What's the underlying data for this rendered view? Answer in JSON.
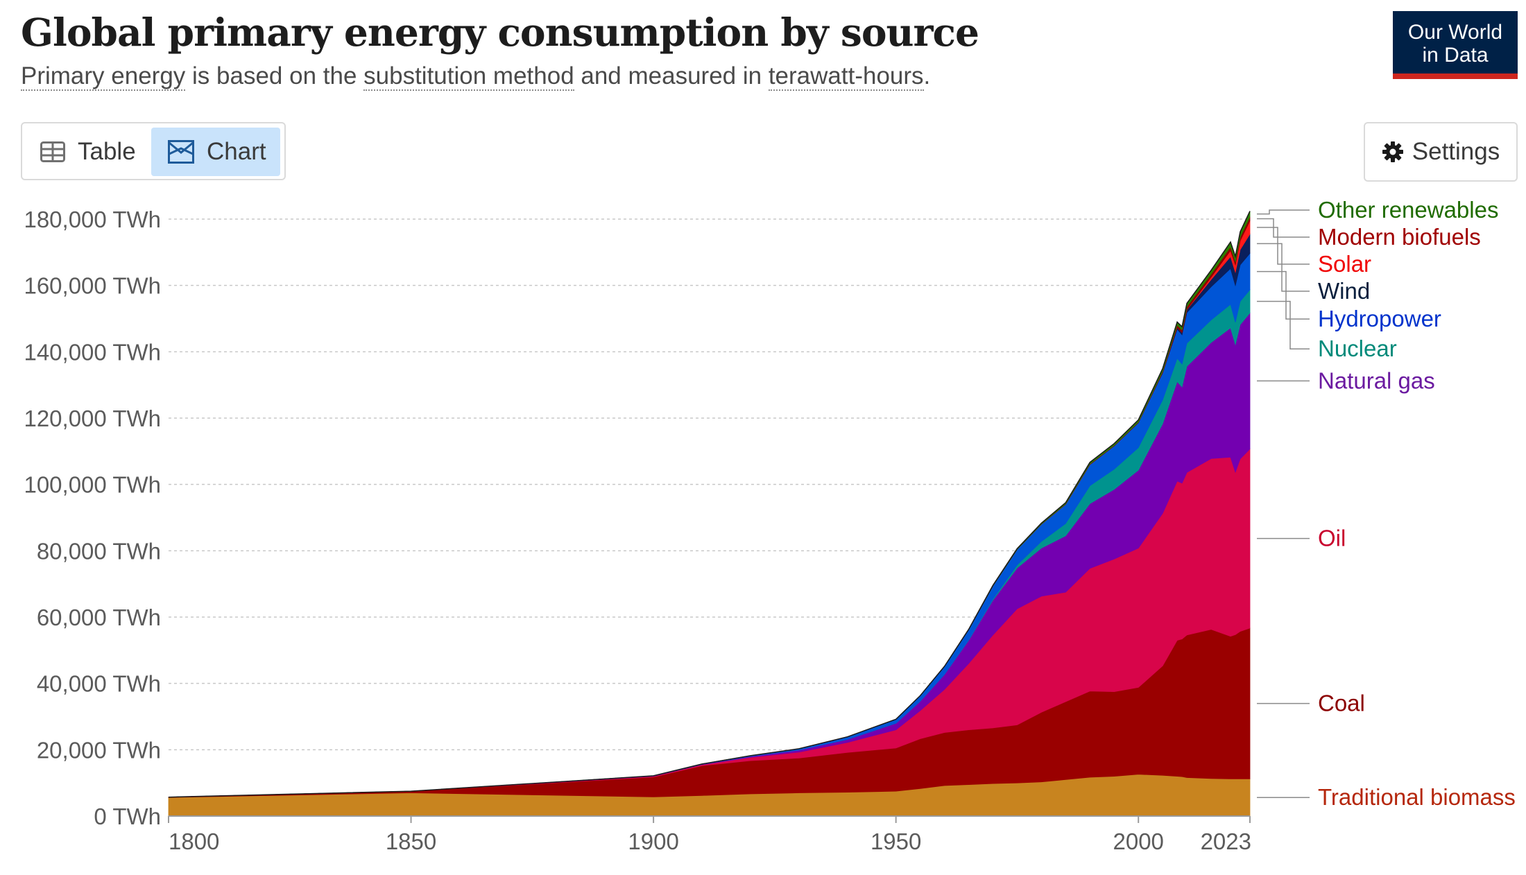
{
  "header": {
    "title": "Global primary energy consumption by source",
    "subtitle_parts": [
      {
        "text": "Primary energy",
        "term": true
      },
      {
        "text": " is based on the ",
        "term": false
      },
      {
        "text": "substitution method",
        "term": true
      },
      {
        "text": " and measured in ",
        "term": false
      },
      {
        "text": "terawatt-hours",
        "term": true
      },
      {
        "text": ".",
        "term": false
      }
    ]
  },
  "logo": {
    "line1": "Our World",
    "line2": "in Data"
  },
  "controls": {
    "table_label": "Table",
    "chart_label": "Chart",
    "settings_label": "Settings",
    "active_tab": "Chart"
  },
  "colors": {
    "accent_chart_tab": "#c9e3fb",
    "logo_bg": "#002147",
    "logo_bar": "#ce261e"
  },
  "chart_data": {
    "type": "area",
    "stacked": true,
    "title": "Global primary energy consumption by source",
    "ylabel_unit": "TWh",
    "ylim": [
      0,
      180000
    ],
    "yticks": [
      0,
      20000,
      40000,
      60000,
      80000,
      100000,
      120000,
      140000,
      160000,
      180000
    ],
    "ytick_labels": [
      "0 TWh",
      "20,000 TWh",
      "40,000 TWh",
      "60,000 TWh",
      "80,000 TWh",
      "100,000 TWh",
      "120,000 TWh",
      "140,000 TWh",
      "160,000 TWh",
      "180,000 TWh"
    ],
    "xlim": [
      1800,
      2023
    ],
    "xticks": [
      1800,
      1850,
      1900,
      1950,
      2000,
      2023
    ],
    "xtick_labels": [
      "1800",
      "1850",
      "1900",
      "1950",
      "2000",
      "2023"
    ],
    "grid": "horizontal dotted",
    "legend_placement": "right, labels at series end",
    "x": [
      1800,
      1850,
      1900,
      1910,
      1920,
      1930,
      1940,
      1950,
      1955,
      1960,
      1965,
      1970,
      1975,
      1980,
      1985,
      1990,
      1995,
      2000,
      2005,
      2008,
      2009,
      2010,
      2015,
      2019,
      2020,
      2021,
      2023
    ],
    "series": [
      {
        "name": "Traditional biomass",
        "color": "#c8841f",
        "label_color": "#b5270c",
        "values": [
          5600,
          7000,
          5800,
          6200,
          6700,
          7000,
          7200,
          7500,
          8300,
          9200,
          9500,
          9800,
          10000,
          10300,
          11000,
          11700,
          12000,
          12600,
          12300,
          12000,
          11900,
          11600,
          11300,
          11200,
          11200,
          11200,
          11200
        ]
      },
      {
        "name": "Coal",
        "color": "#9a0000",
        "label_color": "#8c0000",
        "values": [
          100,
          500,
          6000,
          9000,
          10000,
          10500,
          12000,
          13000,
          15000,
          16000,
          16500,
          16800,
          17500,
          21000,
          23500,
          26000,
          25500,
          26200,
          33000,
          41000,
          41500,
          43000,
          45000,
          43000,
          43500,
          44500,
          45500
        ]
      },
      {
        "name": "Oil",
        "color": "#d8054a",
        "label_color": "#c8002c",
        "values": [
          0,
          0,
          200,
          300,
          1000,
          1800,
          3000,
          5500,
          8500,
          13000,
          20000,
          28000,
          35000,
          35000,
          33000,
          37000,
          40000,
          42000,
          46000,
          48000,
          47000,
          49000,
          51500,
          54000,
          49000,
          52000,
          54000
        ]
      },
      {
        "name": "Natural gas",
        "color": "#7300b0",
        "label_color": "#6b1aa0",
        "values": [
          0,
          0,
          100,
          100,
          300,
          600,
          900,
          2000,
          2800,
          4500,
          7000,
          10500,
          12300,
          14500,
          17000,
          19500,
          21000,
          23500,
          27000,
          30000,
          29000,
          32000,
          35000,
          39000,
          38500,
          40500,
          41000
        ]
      },
      {
        "name": "Nuclear",
        "color": "#00938e",
        "label_color": "#008a7a",
        "values": [
          0,
          0,
          0,
          0,
          0,
          0,
          0,
          0,
          0,
          0,
          100,
          300,
          900,
          2000,
          3700,
          5400,
          6100,
          6800,
          7200,
          7000,
          6900,
          7000,
          6800,
          7100,
          6700,
          7000,
          7000
        ]
      },
      {
        "name": "Hydropower",
        "color": "#0055d6",
        "label_color": "#0033cc",
        "values": [
          0,
          0,
          50,
          100,
          200,
          400,
          800,
          1200,
          1700,
          2400,
          3100,
          4000,
          4700,
          5200,
          5800,
          6400,
          7000,
          7500,
          8100,
          8800,
          8800,
          9200,
          10000,
          10800,
          11100,
          11000,
          11000
        ]
      },
      {
        "name": "Wind",
        "color": "#0a1f5c",
        "label_color": "#0a1f3d",
        "values": [
          0,
          0,
          0,
          0,
          0,
          0,
          0,
          0,
          0,
          0,
          0,
          0,
          0,
          0,
          0,
          10,
          30,
          80,
          250,
          500,
          700,
          900,
          2200,
          3600,
          4000,
          4600,
          5800
        ]
      },
      {
        "name": "Solar",
        "color": "#ff1a1a",
        "label_color": "#f00000",
        "values": [
          0,
          0,
          0,
          0,
          0,
          0,
          0,
          0,
          0,
          0,
          0,
          0,
          0,
          0,
          0,
          0,
          0,
          5,
          10,
          30,
          50,
          80,
          700,
          1800,
          2200,
          2700,
          4000
        ]
      },
      {
        "name": "Modern biofuels",
        "color": "#8c0000",
        "label_color": "#a00000",
        "values": [
          0,
          0,
          0,
          0,
          0,
          0,
          0,
          0,
          0,
          0,
          0,
          0,
          0,
          50,
          100,
          150,
          150,
          150,
          300,
          700,
          700,
          800,
          900,
          1100,
          1000,
          1100,
          1200
        ]
      },
      {
        "name": "Other renewables",
        "color": "#2a7f00",
        "label_color": "#1f6b00",
        "values": [
          0,
          0,
          0,
          0,
          0,
          0,
          0,
          0,
          0,
          50,
          100,
          200,
          250,
          300,
          400,
          500,
          550,
          650,
          800,
          950,
          1000,
          1050,
          1200,
          1500,
          1550,
          1600,
          1700
        ]
      }
    ]
  }
}
